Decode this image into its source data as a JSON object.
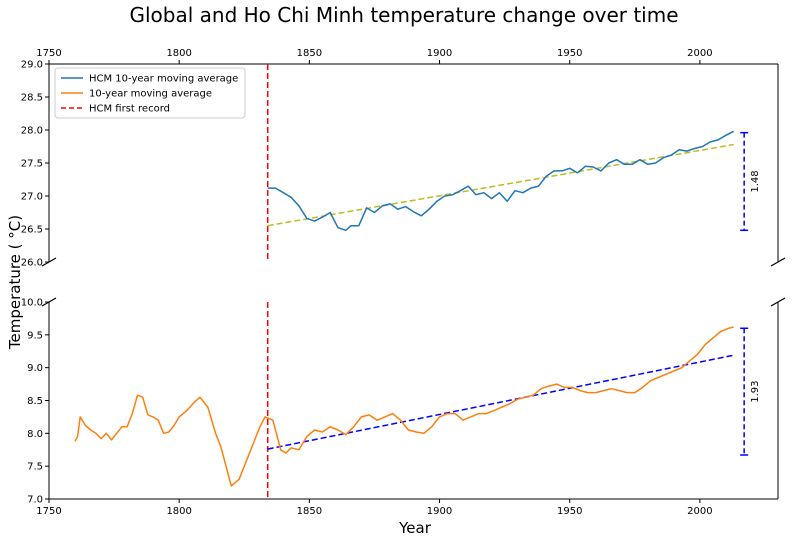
{
  "chart_data": {
    "type": "line",
    "title": "Global and Ho Chi Minh temperature change over time",
    "xlabel": "Year",
    "ylabel": "Temperature ($^\\circ$C)",
    "ylabel_display": "Temperature ( °C)",
    "xlim": [
      1750,
      2030
    ],
    "x_ticks": [
      1750,
      1800,
      1850,
      1900,
      1950,
      2000
    ],
    "legend_position": "upper-left",
    "colors": {
      "hcm": "#1f77b4",
      "global": "#ff7f0e",
      "first_record": "#ff0000",
      "hcm_trend": "#bcbd22",
      "global_trend": "#0000ff"
    },
    "legend": [
      {
        "label": "HCM 10-year moving average",
        "style": "solid",
        "color": "#1f77b4"
      },
      {
        "label": "10-year moving average",
        "style": "solid",
        "color": "#ff7f0e"
      },
      {
        "label": "HCM first record",
        "style": "dashed",
        "color": "#ff0000"
      }
    ],
    "panels": [
      {
        "name": "upper",
        "ylim": [
          26.0,
          29.0
        ],
        "y_ticks": [
          26.0,
          26.5,
          27.0,
          27.5,
          28.0,
          28.5,
          29.0
        ],
        "series": [
          {
            "name": "HCM 10-year moving average",
            "color": "#1f77b4",
            "x": [
              1834,
              1837,
              1840,
              1843,
              1846,
              1849,
              1852,
              1855,
              1858,
              1861,
              1864,
              1866,
              1869,
              1872,
              1875,
              1878,
              1881,
              1884,
              1887,
              1890,
              1893,
              1896,
              1899,
              1902,
              1905,
              1908,
              1911,
              1914,
              1917,
              1920,
              1923,
              1926,
              1929,
              1932,
              1935,
              1938,
              1941,
              1944,
              1947,
              1950,
              1953,
              1956,
              1959,
              1962,
              1965,
              1968,
              1971,
              1974,
              1977,
              1980,
              1983,
              1986,
              1989,
              1992,
              1995,
              1998,
              2001,
              2004,
              2007,
              2010,
              2013
            ],
            "values": [
              27.12,
              27.12,
              27.05,
              26.98,
              26.85,
              26.66,
              26.62,
              26.68,
              26.75,
              26.52,
              26.48,
              26.55,
              26.55,
              26.82,
              26.75,
              26.85,
              26.88,
              26.8,
              26.84,
              26.76,
              26.7,
              26.8,
              26.92,
              27.0,
              27.02,
              27.08,
              27.15,
              27.02,
              27.05,
              26.96,
              27.05,
              26.92,
              27.08,
              27.05,
              27.12,
              27.15,
              27.3,
              27.38,
              27.38,
              27.42,
              27.35,
              27.45,
              27.44,
              27.38,
              27.5,
              27.55,
              27.48,
              27.48,
              27.55,
              27.48,
              27.5,
              27.58,
              27.62,
              27.7,
              27.68,
              27.72,
              27.75,
              27.82,
              27.85,
              27.92,
              27.98
            ]
          }
        ],
        "trend": {
          "x": [
            1834,
            2013
          ],
          "values": [
            26.55,
            27.78
          ],
          "color": "#bcbd22"
        },
        "range_marker": {
          "x": 2017,
          "low": 26.48,
          "high": 27.96,
          "label": "1.48"
        }
      },
      {
        "name": "lower",
        "ylim": [
          7.0,
          10.0
        ],
        "y_ticks": [
          7.0,
          7.5,
          8.0,
          8.5,
          9.0,
          9.5,
          10.0
        ],
        "series": [
          {
            "name": "10-year moving average",
            "color": "#ff7f0e",
            "x": [
              1760,
              1761,
              1762,
              1764,
              1766,
              1768,
              1770,
              1772,
              1774,
              1776,
              1778,
              1780,
              1782,
              1784,
              1786,
              1788,
              1790,
              1792,
              1794,
              1796,
              1798,
              1800,
              1803,
              1806,
              1808,
              1811,
              1814,
              1816,
              1818,
              1820,
              1823,
              1826,
              1829,
              1831,
              1833,
              1836,
              1839,
              1841,
              1843,
              1846,
              1849,
              1852,
              1855,
              1858,
              1861,
              1864,
              1867,
              1870,
              1873,
              1876,
              1879,
              1882,
              1885,
              1888,
              1891,
              1894,
              1897,
              1900,
              1903,
              1906,
              1909,
              1912,
              1915,
              1918,
              1921,
              1924,
              1927,
              1930,
              1933,
              1936,
              1939,
              1942,
              1945,
              1948,
              1951,
              1954,
              1957,
              1960,
              1963,
              1966,
              1969,
              1972,
              1975,
              1978,
              1981,
              1984,
              1987,
              1990,
              1993,
              1996,
              1999,
              2002,
              2005,
              2008,
              2011,
              2013
            ],
            "values": [
              7.88,
              7.95,
              8.25,
              8.12,
              8.05,
              8.0,
              7.92,
              8.0,
              7.9,
              8.0,
              8.1,
              8.1,
              8.3,
              8.58,
              8.55,
              8.28,
              8.25,
              8.2,
              8.0,
              8.02,
              8.12,
              8.25,
              8.35,
              8.48,
              8.55,
              8.4,
              8.0,
              7.8,
              7.5,
              7.2,
              7.3,
              7.6,
              7.9,
              8.1,
              8.25,
              8.2,
              7.75,
              7.7,
              7.78,
              7.75,
              7.95,
              8.05,
              8.02,
              8.1,
              8.05,
              7.98,
              8.1,
              8.25,
              8.28,
              8.2,
              8.25,
              8.3,
              8.2,
              8.05,
              8.02,
              8.0,
              8.1,
              8.25,
              8.3,
              8.3,
              8.2,
              8.25,
              8.3,
              8.3,
              8.35,
              8.4,
              8.45,
              8.52,
              8.55,
              8.58,
              8.68,
              8.72,
              8.75,
              8.7,
              8.7,
              8.65,
              8.62,
              8.62,
              8.65,
              8.68,
              8.65,
              8.62,
              8.62,
              8.7,
              8.8,
              8.85,
              8.9,
              8.95,
              9.0,
              9.1,
              9.2,
              9.35,
              9.45,
              9.55,
              9.6,
              9.62
            ]
          }
        ],
        "trend": {
          "x": [
            1834,
            2013
          ],
          "values": [
            7.76,
            9.19
          ],
          "color": "#0000ff"
        },
        "range_marker": {
          "x": 2017,
          "low": 7.67,
          "high": 9.6,
          "label": "1.93"
        }
      }
    ],
    "first_record_x": 1834
  }
}
